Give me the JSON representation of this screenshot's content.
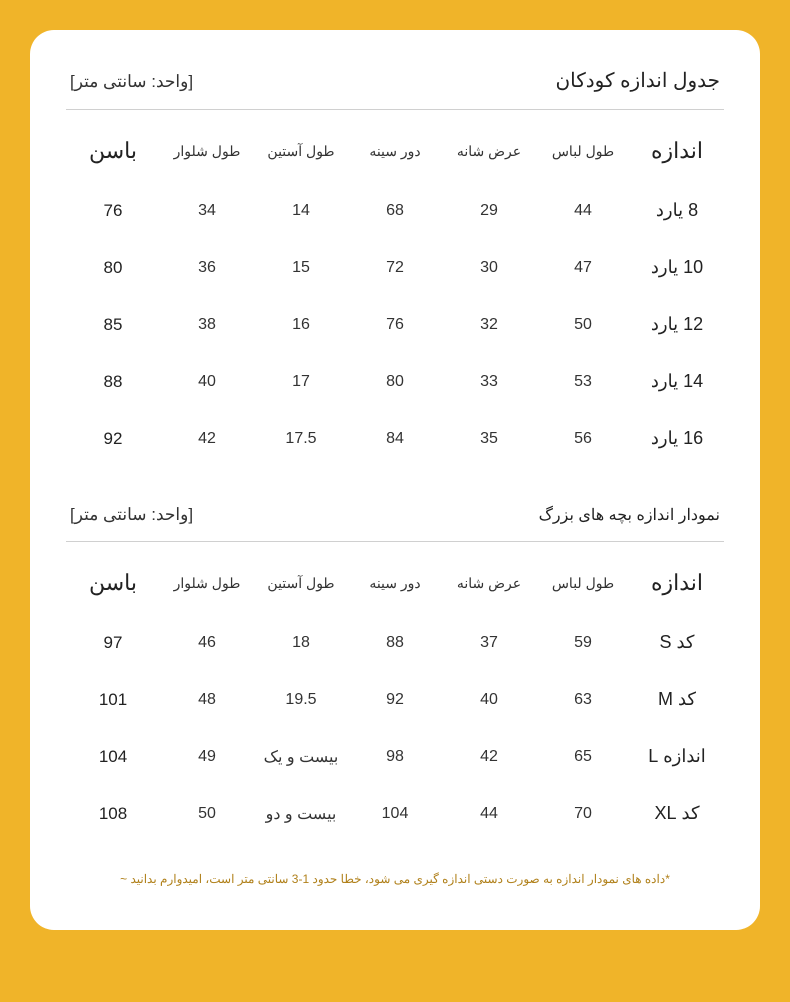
{
  "table1": {
    "title": "جدول اندازه کودکان",
    "unit": "[واحد: سانتی متر]",
    "columns": [
      "اندازه",
      "طول لباس",
      "عرض شانه",
      "دور سینه",
      "طول آستین",
      "طول شلوار",
      "باسن"
    ],
    "rows": [
      {
        "size": "8 یارد",
        "c1": "44",
        "c2": "29",
        "c3": "68",
        "c4": "14",
        "c5": "34",
        "c6": "76"
      },
      {
        "size": "10 یارد",
        "c1": "47",
        "c2": "30",
        "c3": "72",
        "c4": "15",
        "c5": "36",
        "c6": "80"
      },
      {
        "size": "12 یارد",
        "c1": "50",
        "c2": "32",
        "c3": "76",
        "c4": "16",
        "c5": "38",
        "c6": "85"
      },
      {
        "size": "14 یارد",
        "c1": "53",
        "c2": "33",
        "c3": "80",
        "c4": "17",
        "c5": "40",
        "c6": "88"
      },
      {
        "size": "16 یارد",
        "c1": "56",
        "c2": "35",
        "c3": "84",
        "c4": "17.5",
        "c5": "42",
        "c6": "92"
      }
    ]
  },
  "table2": {
    "title": "نمودار اندازه بچه های بزرگ",
    "unit": "[واحد: سانتی متر]",
    "columns": [
      "اندازه",
      "طول لباس",
      "عرض شانه",
      "دور سینه",
      "طول آستین",
      "طول شلوار",
      "باسن"
    ],
    "rows": [
      {
        "size": "کد S",
        "c1": "59",
        "c2": "37",
        "c3": "88",
        "c4": "18",
        "c5": "46",
        "c6": "97"
      },
      {
        "size": "کد M",
        "c1": "63",
        "c2": "40",
        "c3": "92",
        "c4": "19.5",
        "c5": "48",
        "c6": "101"
      },
      {
        "size": "اندازه L",
        "c1": "65",
        "c2": "42",
        "c3": "98",
        "c4": "بیست و یک",
        "c5": "49",
        "c6": "104"
      },
      {
        "size": "کد XL",
        "c1": "70",
        "c2": "44",
        "c3": "104",
        "c4": "بیست و دو",
        "c5": "50",
        "c6": "108"
      }
    ]
  },
  "footnote": "*داده های نمودار اندازه به صورت دستی اندازه گیری می شود، خطا حدود 1-3 سانتی متر است، امیدوارم بدانید ~"
}
